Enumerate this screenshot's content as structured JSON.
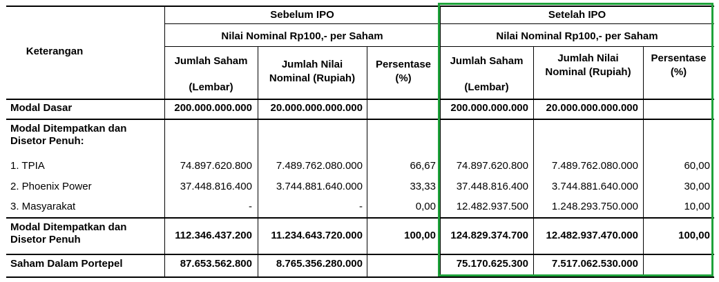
{
  "header": {
    "keterangan": "Keterangan",
    "before_group": "Sebelum IPO",
    "after_group": "Setelah IPO",
    "nominal_before": "Nilai Nominal Rp100,- per Saham",
    "nominal_after": "Nilai Nominal Rp100,- per Saham",
    "jumlah_saham_l1": "Jumlah Saham",
    "jumlah_saham_l2": "(Lembar)",
    "jumlah_nilai_l1": "Jumlah Nilai",
    "jumlah_nilai_l2": "Nominal (Rupiah)",
    "persentase_l1": "Persentase",
    "persentase_l2": "(%)"
  },
  "rows": [
    {
      "label": "Modal Dasar",
      "bold": true,
      "b_saham": "200.000.000.000",
      "b_nilai": "20.000.000.000.000",
      "b_pct": "",
      "a_saham": "200.000.000.000",
      "a_nilai": "20.000.000.000.000",
      "a_pct": ""
    },
    {
      "label": "Modal Ditempatkan dan",
      "label2": "Disetor Penuh:",
      "bold": true
    },
    {
      "label": "1. TPIA",
      "b_saham": "74.897.620.800",
      "b_nilai": "7.489.762.080.000",
      "b_pct": "66,67",
      "a_saham": "74.897.620.800",
      "a_nilai": "7.489.762.080.000",
      "a_pct": "60,00"
    },
    {
      "label": "2. Phoenix Power",
      "b_saham": "37.448.816.400",
      "b_nilai": "3.744.881.640.000",
      "b_pct": "33,33",
      "a_saham": "37.448.816.400",
      "a_nilai": "3.744.881.640.000",
      "a_pct": "30,00"
    },
    {
      "label": "3. Masyarakat",
      "b_saham": "-",
      "b_nilai": "-",
      "b_pct": "0,00",
      "a_saham": "12.482.937.500",
      "a_nilai": "1.248.293.750.000",
      "a_pct": "10,00"
    },
    {
      "label": "Modal Ditempatkan dan",
      "label2": "Disetor Penuh",
      "bold": true,
      "b_saham": "112.346.437.200",
      "b_nilai": "11.234.643.720.000",
      "b_pct": "100,00",
      "a_saham": "124.829.374.700",
      "a_nilai": "12.482.937.470.000",
      "a_pct": "100,00"
    },
    {
      "label": "Saham Dalam Portepel",
      "bold": true,
      "b_saham": "87.653.562.800",
      "b_nilai": "8.765.356.280.000",
      "b_pct": "",
      "a_saham": "75.170.625.300",
      "a_nilai": "7.517.062.530.000",
      "a_pct": ""
    }
  ],
  "colors": {
    "highlight_border": "#1ea23a",
    "rule": "#000000"
  }
}
